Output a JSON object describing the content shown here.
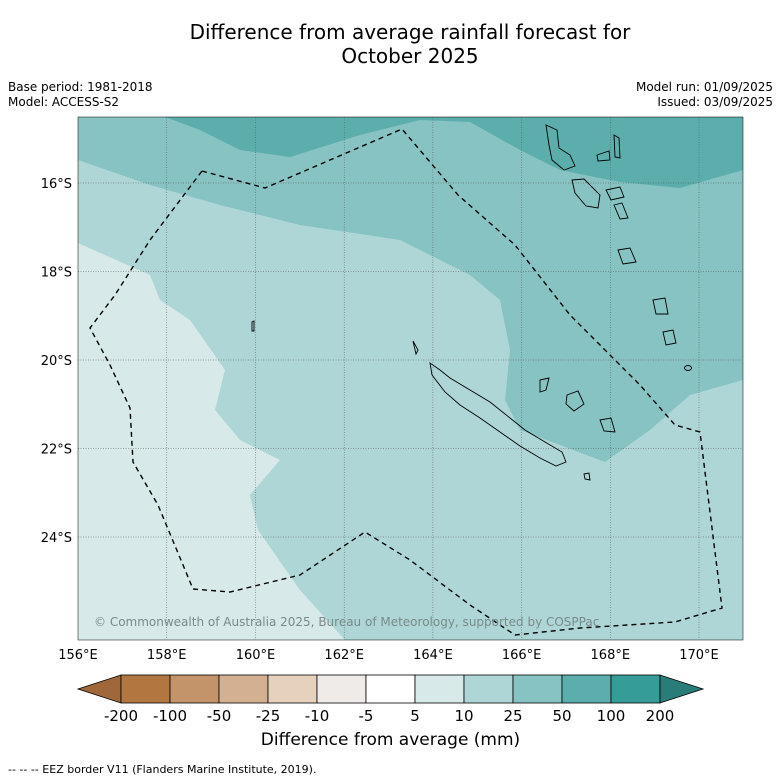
{
  "header": {
    "title_line1": "Difference from average rainfall forecast for",
    "title_line2": "October 2025",
    "base_period": "Base period: 1981-2018",
    "model": "Model: ACCESS-S2",
    "model_run": "Model run: 01/09/2025",
    "issued": "Issued: 03/09/2025"
  },
  "map": {
    "lat_labels": [
      "16°S",
      "18°S",
      "20°S",
      "22°S",
      "24°S"
    ],
    "lon_labels": [
      "156°E",
      "158°E",
      "160°E",
      "162°E",
      "164°E",
      "166°E",
      "168°E",
      "170°E"
    ],
    "copyright": "© Commonwealth of Australia 2025, Bureau of Meteorology, supported by COSPPac"
  },
  "colorbar": {
    "ticks": [
      "-200",
      "-100",
      "-50",
      "-25",
      "-10",
      "-5",
      "5",
      "10",
      "25",
      "50",
      "100",
      "200"
    ],
    "colors": [
      "#a0673a",
      "#b27740",
      "#c3936a",
      "#d4b092",
      "#e6d1bd",
      "#efebe8",
      "#ffffff",
      "#d7e9e8",
      "#aed6d6",
      "#87c3c2",
      "#5baeab",
      "#369c98",
      "#2a7c78"
    ],
    "label": "Difference from average (mm)"
  },
  "footnote": "--  --  -- EEZ border V11 (Flanders Marine Institute, 2019)."
}
